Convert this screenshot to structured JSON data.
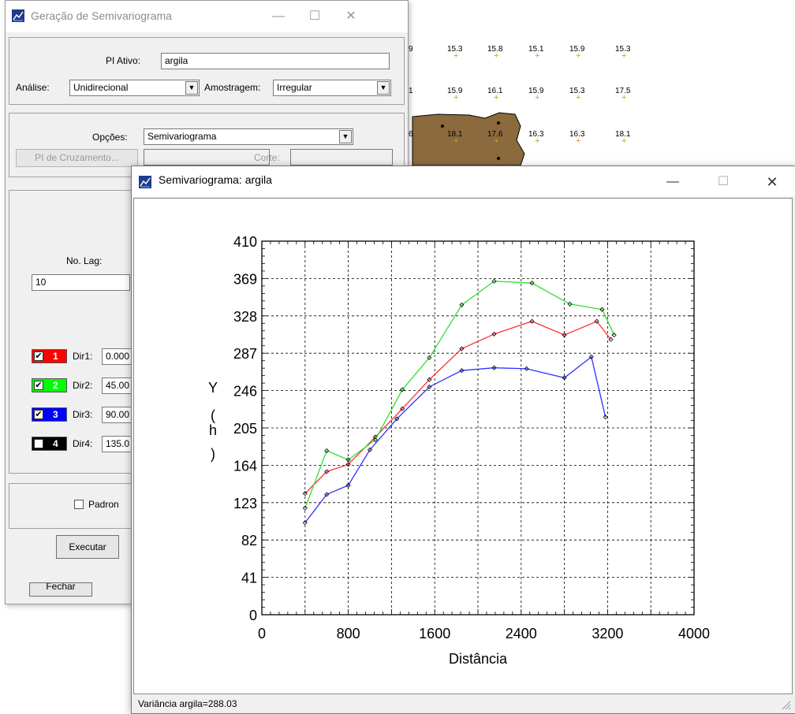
{
  "map_labels": {
    "row1": [
      "9",
      "15.3",
      "15.8",
      "15.1",
      "15.9",
      "15.3"
    ],
    "row2": [
      "1",
      "15.9",
      "16.1",
      "15.9",
      "15.3",
      "17.5"
    ],
    "row3": [
      "6",
      "18.1",
      "17.6",
      "16.3",
      "16.3",
      "18.1"
    ]
  },
  "gen_window": {
    "title": "Geração de Semivariograma",
    "pi_ativo_label": "PI Ativo:",
    "pi_ativo_value": "argila",
    "analise_label": "Análise:",
    "analise_value": "Unidirecional",
    "amostragem_label": "Amostragem:",
    "amostragem_value": "Irregular",
    "opcoes_label": "Opções:",
    "opcoes_value": "Semivariograma",
    "pi_cruzamento_button": "PI de Cruzamento...",
    "corte_label": "Corte:",
    "no_lag_label": "No. Lag:",
    "no_lag_value": "10",
    "directions": [
      {
        "num": "1",
        "label": "Dir1:",
        "value": "0.000",
        "color": "#ff0000",
        "checked": true
      },
      {
        "num": "2",
        "label": "Dir2:",
        "value": "45.00",
        "color": "#00ff00",
        "checked": true
      },
      {
        "num": "3",
        "label": "Dir3:",
        "value": "90.00",
        "color": "#0000ff",
        "checked": true
      },
      {
        "num": "4",
        "label": "Dir4:",
        "value": "135.0",
        "color": "#000000",
        "checked": false
      }
    ],
    "padrao_label": "Padron",
    "executar_button": "Executar",
    "fechar_button": "Fechar"
  },
  "plot_window": {
    "title": "Semivariograma: argila",
    "status": "Variância argila=288.03"
  },
  "chart_data": {
    "type": "line",
    "xlabel": "Distância",
    "ylabel_chars": [
      "Y",
      "(",
      "h",
      ")"
    ],
    "xlim": [
      0,
      4000
    ],
    "ylim": [
      0,
      410
    ],
    "xticks": [
      "0",
      "800",
      "1600",
      "2400",
      "3200",
      "4000"
    ],
    "yticks": [
      "0",
      "41",
      "82",
      "123",
      "164",
      "205",
      "246",
      "287",
      "328",
      "369",
      "410"
    ],
    "grid": true,
    "series": [
      {
        "color": "#ff3030",
        "x": [
          400,
          600,
          800,
          1050,
          1300,
          1550,
          1850,
          2150,
          2500,
          2800,
          3100,
          3230
        ],
        "y": [
          133,
          157,
          165,
          195,
          226,
          258,
          292,
          308,
          322,
          307,
          322,
          302
        ]
      },
      {
        "color": "#30e030",
        "x": [
          400,
          600,
          800,
          1050,
          1300,
          1550,
          1850,
          2150,
          2500,
          2850,
          3150,
          3260
        ],
        "y": [
          117,
          180,
          170,
          192,
          247,
          282,
          340,
          366,
          364,
          341,
          335,
          307
        ]
      },
      {
        "color": "#3030ff",
        "x": [
          400,
          600,
          800,
          1000,
          1250,
          1550,
          1850,
          2150,
          2450,
          2800,
          3050,
          3180
        ],
        "y": [
          101,
          132,
          142,
          181,
          215,
          250,
          268,
          271,
          270,
          260,
          283,
          217
        ]
      }
    ]
  }
}
